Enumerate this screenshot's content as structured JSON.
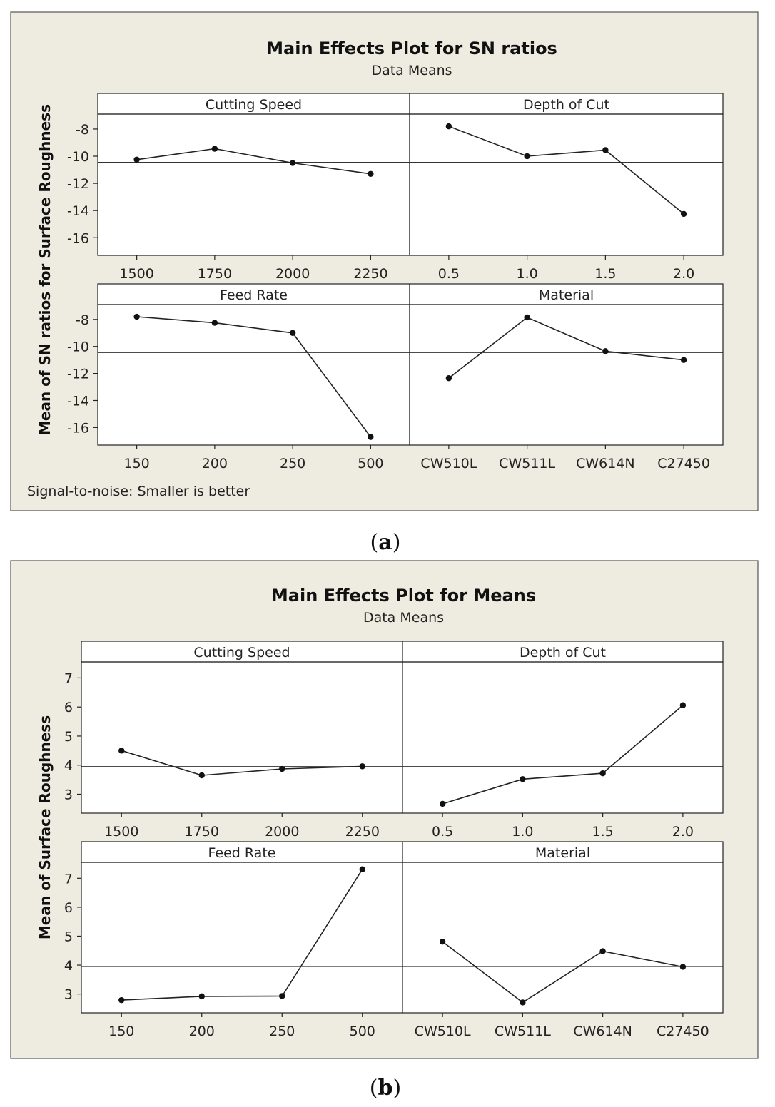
{
  "chart_data": [
    {
      "type": "line",
      "title": "Main Effects Plot for SN ratios",
      "subtitle": "Data Means",
      "ylabel": "Mean of SN ratios for Surface Roughness",
      "ylim": [
        -17.3,
        -6.9
      ],
      "yticks": [
        -8,
        -10,
        -12,
        -14,
        -16
      ],
      "ytick_labels": [
        "-8",
        "-10",
        "-12",
        "-14",
        "-16"
      ],
      "reference_line": -10.45,
      "footnote": "Signal-to-noise: Smaller is better",
      "caption": {
        "open": "(",
        "letter": "a",
        "close": ")"
      },
      "panels": [
        {
          "name": "Cutting Speed",
          "categories": [
            "1500",
            "1750",
            "2000",
            "2250"
          ],
          "values": [
            -10.25,
            -9.45,
            -10.5,
            -11.3
          ]
        },
        {
          "name": "Depth of Cut",
          "categories": [
            "0.5",
            "1.0",
            "1.5",
            "2.0"
          ],
          "values": [
            -7.8,
            -10.0,
            -9.55,
            -14.25
          ]
        },
        {
          "name": "Feed Rate",
          "categories": [
            "150",
            "200",
            "250",
            "500"
          ],
          "values": [
            -7.8,
            -8.25,
            -9.0,
            -16.7
          ]
        },
        {
          "name": "Material",
          "categories": [
            "CW510L",
            "CW511L",
            "CW614N",
            "C27450"
          ],
          "values": [
            -12.35,
            -7.85,
            -10.35,
            -11.0
          ]
        }
      ]
    },
    {
      "type": "line",
      "title": "Main Effects Plot for Means",
      "subtitle": "Data Means",
      "ylabel": "Mean of Surface Roughness",
      "ylim": [
        2.35,
        7.55
      ],
      "yticks": [
        3,
        4,
        5,
        6,
        7
      ],
      "ytick_labels": [
        "3",
        "4",
        "5",
        "6",
        "7"
      ],
      "reference_line": 3.95,
      "footnote": "",
      "caption": {
        "open": "(",
        "letter": "b",
        "close": ")"
      },
      "panels": [
        {
          "name": "Cutting Speed",
          "categories": [
            "1500",
            "1750",
            "2000",
            "2250"
          ],
          "values": [
            4.5,
            3.65,
            3.87,
            3.96
          ]
        },
        {
          "name": "Depth of Cut",
          "categories": [
            "0.5",
            "1.0",
            "1.5",
            "2.0"
          ],
          "values": [
            2.67,
            3.52,
            3.72,
            6.06
          ]
        },
        {
          "name": "Feed Rate",
          "categories": [
            "150",
            "200",
            "250",
            "500"
          ],
          "values": [
            2.79,
            2.92,
            2.93,
            7.31
          ]
        },
        {
          "name": "Material",
          "categories": [
            "CW510L",
            "CW511L",
            "CW614N",
            "C27450"
          ],
          "values": [
            4.81,
            2.71,
            4.48,
            3.94
          ]
        }
      ]
    }
  ]
}
